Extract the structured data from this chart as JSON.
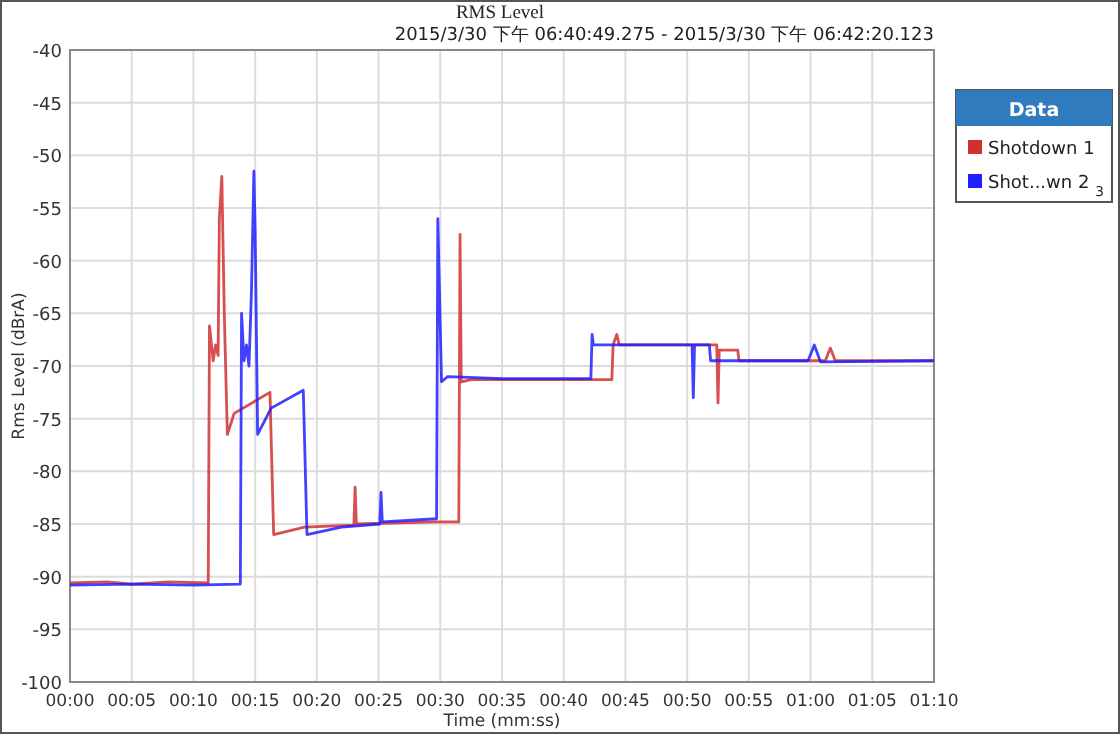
{
  "chart_data": {
    "type": "line",
    "title": "RMS Level",
    "subtitle": "2015/3/30 下午 06:40:49.275  -  2015/3/30 下午 06:42:20.123",
    "xlabel": "Time (mm:ss)",
    "ylabel": "Rms Level (dBrA)",
    "legend_title": "Data",
    "legend": "right",
    "grid": true,
    "xlim": [
      0,
      70
    ],
    "ylim": [
      -100,
      -40
    ],
    "xticks": [
      {
        "value": 0,
        "label": "00:00"
      },
      {
        "value": 5,
        "label": "00:05"
      },
      {
        "value": 10,
        "label": "00:10"
      },
      {
        "value": 15,
        "label": "00:15"
      },
      {
        "value": 20,
        "label": "00:20"
      },
      {
        "value": 25,
        "label": "00:25"
      },
      {
        "value": 30,
        "label": "00:30"
      },
      {
        "value": 35,
        "label": "00:35"
      },
      {
        "value": 40,
        "label": "00:40"
      },
      {
        "value": 45,
        "label": "00:45"
      },
      {
        "value": 50,
        "label": "00:50"
      },
      {
        "value": 55,
        "label": "00:55"
      },
      {
        "value": 60,
        "label": "01:00"
      },
      {
        "value": 65,
        "label": "01:05"
      },
      {
        "value": 70,
        "label": "01:10"
      }
    ],
    "yticks": [
      -100,
      -95,
      -90,
      -85,
      -80,
      -75,
      -70,
      -65,
      -60,
      -55,
      -50,
      -45,
      -40
    ],
    "series": [
      {
        "name": "Shotdown 1",
        "color": "#d03030",
        "x": [
          0,
          3,
          5,
          8,
          11.2,
          11.3,
          11.6,
          11.8,
          12.0,
          12.1,
          12.3,
          12.5,
          12.75,
          13.3,
          16.2,
          16.5,
          19,
          23,
          23.1,
          23.2,
          29.5,
          31.5,
          31.6,
          31.7,
          32.5,
          43.9,
          44,
          44.3,
          44.5,
          52.4,
          52.5,
          52.6,
          54.1,
          54.2,
          61.2,
          61.6,
          62,
          70
        ],
        "values": [
          -90.6,
          -90.5,
          -90.7,
          -90.5,
          -90.6,
          -66.2,
          -69.5,
          -68,
          -69,
          -56,
          -52,
          -65,
          -76.5,
          -74.5,
          -72.5,
          -86,
          -85.3,
          -85.1,
          -81.5,
          -85,
          -84.8,
          -84.8,
          -57.5,
          -71.5,
          -71.3,
          -71.3,
          -68,
          -67,
          -68,
          -68,
          -73.5,
          -68.5,
          -68.5,
          -69.5,
          -69.5,
          -68.3,
          -69.5,
          -69.5
        ]
      },
      {
        "name": "Shot...wn 2 $_{3}$",
        "color": "#2020ff",
        "x": [
          0,
          5,
          10,
          13.8,
          13.9,
          14.1,
          14.3,
          14.5,
          14.7,
          14.9,
          15.0,
          15.2,
          16.3,
          18.9,
          19.2,
          22,
          25.1,
          25.2,
          25.3,
          29.7,
          29.8,
          30.1,
          30.6,
          35,
          42.2,
          42.3,
          42.4,
          50.4,
          50.5,
          50.6,
          51.8,
          51.9,
          59.8,
          60.3,
          60.8,
          70
        ],
        "values": [
          -90.8,
          -90.7,
          -90.8,
          -90.7,
          -65,
          -69.5,
          -68,
          -70,
          -63,
          -51.5,
          -57,
          -76.5,
          -74,
          -72.3,
          -86,
          -85.3,
          -85,
          -82,
          -84.8,
          -84.5,
          -56,
          -71.5,
          -71,
          -71.2,
          -71.2,
          -67,
          -68,
          -68,
          -73,
          -68,
          -68,
          -69.5,
          -69.5,
          -68,
          -69.6,
          -69.5
        ]
      }
    ]
  }
}
